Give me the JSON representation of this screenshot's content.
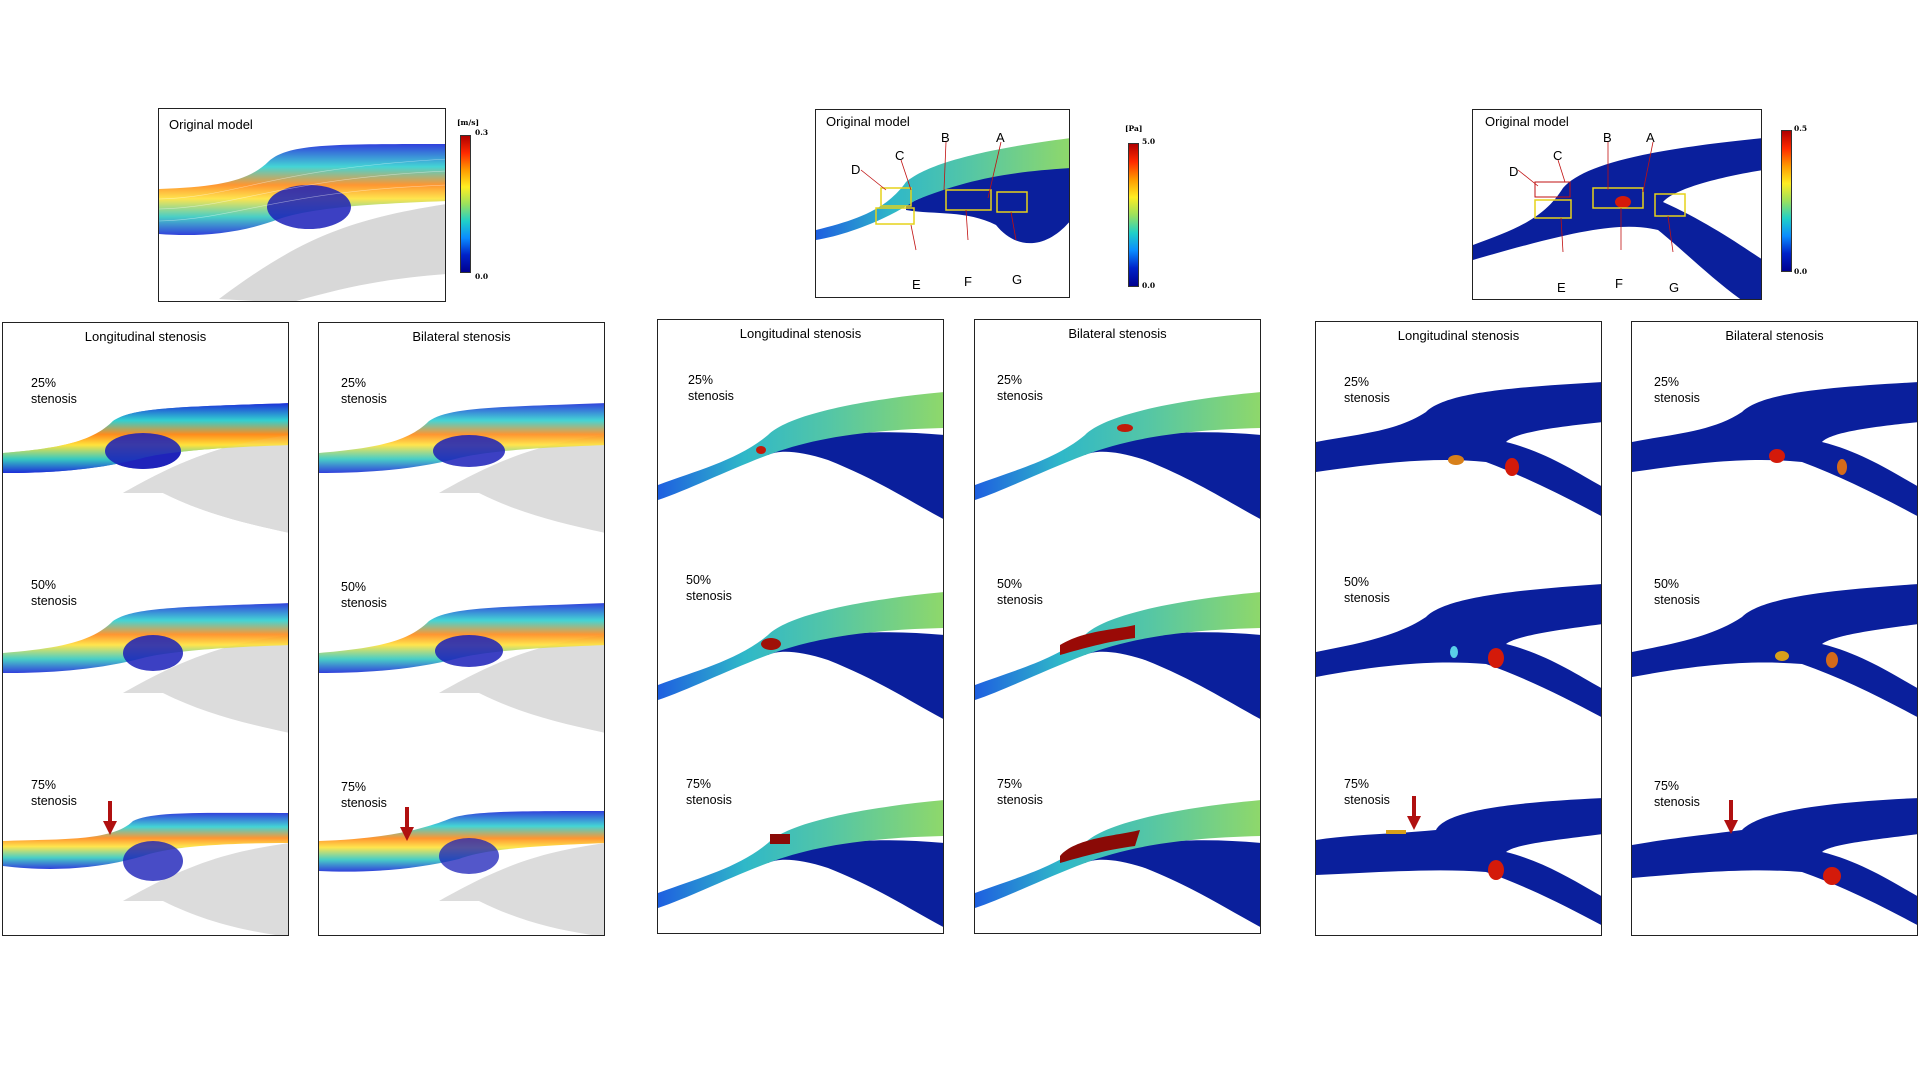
{
  "velocity": {
    "original": {
      "title": "Original model",
      "colorbar": {
        "unit": "[m/s]",
        "max": "0.3",
        "min": "0.0"
      }
    },
    "columns": [
      {
        "title": "Longitudinal stenosis"
      },
      {
        "title": "Bilateral stenosis"
      }
    ]
  },
  "wss": {
    "original": {
      "title": "Original model",
      "colorbar": {
        "unit": "[Pa]",
        "max": "5.0",
        "min": "0.0"
      },
      "letters": [
        "A",
        "B",
        "C",
        "D",
        "E",
        "F",
        "G"
      ]
    },
    "columns": [
      {
        "title": "Longitudinal stenosis"
      },
      {
        "title": "Bilateral stenosis"
      }
    ]
  },
  "osi": {
    "original": {
      "title": "Original model",
      "colorbar": {
        "max": "0.5",
        "min": "0.0"
      },
      "letters": [
        "A",
        "B",
        "C",
        "D",
        "E",
        "F",
        "G"
      ]
    },
    "columns": [
      {
        "title": "Longitudinal stenosis"
      },
      {
        "title": "Bilateral stenosis"
      }
    ]
  },
  "rows": [
    {
      "pct": "25%",
      "word": "stenosis"
    },
    {
      "pct": "50%",
      "word": "stenosis"
    },
    {
      "pct": "75%",
      "word": "stenosis"
    }
  ],
  "colors": {
    "arrow": "#b01010",
    "boxes": "#e6d21a",
    "leader": "#c01010",
    "vessel_blue": "#0a1f9c"
  }
}
